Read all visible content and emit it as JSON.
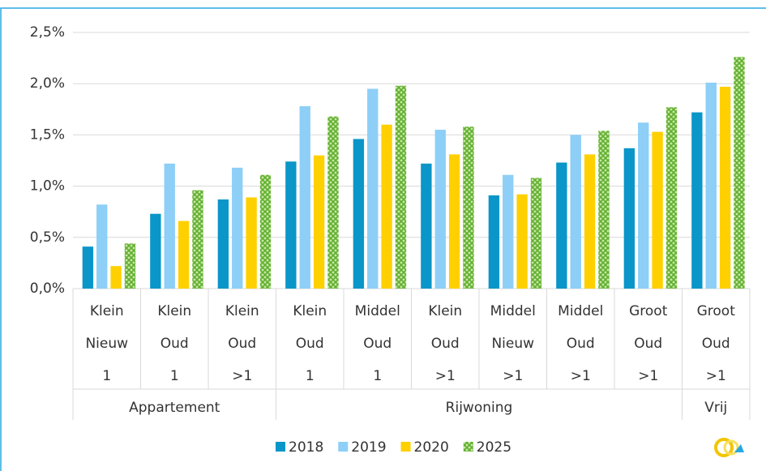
{
  "chart_data": {
    "type": "bar",
    "groups": [
      {
        "name": "Appartement",
        "categories": [
          [
            "Klein",
            "Nieuw",
            "1"
          ],
          [
            "Klein",
            "Oud",
            "1"
          ],
          [
            "Klein",
            "Oud",
            ">1"
          ]
        ]
      },
      {
        "name": "Rijwoning",
        "categories": [
          [
            "Klein",
            "Oud",
            "1"
          ],
          [
            "Middel",
            "Oud",
            "1"
          ],
          [
            "Klein",
            "Oud",
            ">1"
          ],
          [
            "Middel",
            "Nieuw",
            ">1"
          ],
          [
            "Middel",
            "Oud",
            ">1"
          ],
          [
            "Groot",
            "Oud",
            ">1"
          ]
        ]
      },
      {
        "name": "Vrij",
        "categories": [
          [
            "Groot",
            "Oud",
            ">1"
          ]
        ]
      }
    ],
    "series": [
      {
        "name": "2018",
        "color": "#0a96c8",
        "values": [
          0.41,
          0.73,
          0.87,
          1.24,
          1.46,
          1.22,
          0.91,
          1.23,
          1.37,
          1.72
        ]
      },
      {
        "name": "2019",
        "color": "#8dcff7",
        "values": [
          0.82,
          1.22,
          1.18,
          1.78,
          1.95,
          1.55,
          1.11,
          1.5,
          1.62,
          2.01
        ]
      },
      {
        "name": "2020",
        "color": "#ffd000",
        "values": [
          0.22,
          0.66,
          0.89,
          1.3,
          1.6,
          1.31,
          0.92,
          1.31,
          1.53,
          1.97
        ]
      },
      {
        "name": "2025",
        "color": "#7dc242",
        "values": [
          0.44,
          0.96,
          1.11,
          1.68,
          1.98,
          1.58,
          1.08,
          1.54,
          1.77,
          2.26
        ]
      }
    ],
    "ylim": [
      0,
      2.5
    ],
    "yticks": [
      {
        "value": 0,
        "label": "0,0%"
      },
      {
        "value": 0.5,
        "label": "0,5%"
      },
      {
        "value": 1,
        "label": "1,0%"
      },
      {
        "value": 1.5,
        "label": "1,5%"
      },
      {
        "value": 2,
        "label": "2,0%"
      },
      {
        "value": 2.5,
        "label": "2,5%"
      }
    ],
    "grid": true,
    "legend": "bottom"
  }
}
